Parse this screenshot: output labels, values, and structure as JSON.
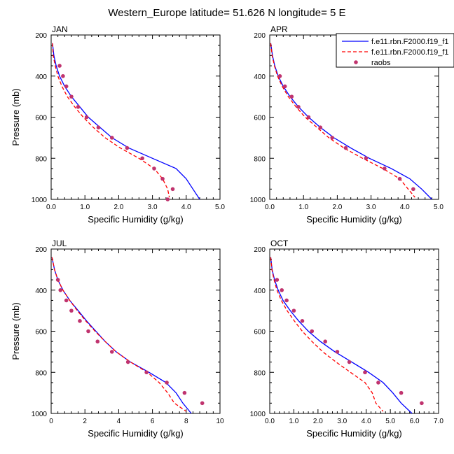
{
  "title": "Western_Europe  latitude= 51.626 N longitude= 5 E",
  "legend": {
    "entries": [
      {
        "label": "f.e11.rbn.F2000.f19_f1",
        "color": "#0000ff",
        "style": "solid"
      },
      {
        "label": "f.e11.rbn.F2000.f19_f1",
        "color": "#ff0000",
        "style": "dashed"
      },
      {
        "label": "raobs",
        "color": "#c0336e",
        "style": "marker"
      }
    ]
  },
  "chart_data": [
    {
      "type": "line",
      "panel": "JAN",
      "xlabel": "Specific Humidity (g/kg)",
      "ylabel": "Pressure (mb)",
      "xlim": [
        0,
        5
      ],
      "ylim": [
        1000,
        200
      ],
      "x_ticks": [
        "0.0",
        "1.0",
        "2.0",
        "3.0",
        "4.0",
        "5.0"
      ],
      "y_ticks": [
        "200",
        "400",
        "600",
        "800",
        "1000"
      ],
      "series": [
        {
          "name": "f.e11.rbn.F2000.f19_f1",
          "color": "#0000ff",
          "dash": "",
          "points": [
            [
              0.04,
              240
            ],
            [
              0.08,
              300
            ],
            [
              0.15,
              350
            ],
            [
              0.25,
              400
            ],
            [
              0.4,
              450
            ],
            [
              0.6,
              500
            ],
            [
              0.85,
              550
            ],
            [
              1.1,
              600
            ],
            [
              1.45,
              650
            ],
            [
              1.8,
              700
            ],
            [
              2.3,
              750
            ],
            [
              3.0,
              800
            ],
            [
              3.7,
              850
            ],
            [
              4.0,
              900
            ],
            [
              4.2,
              950
            ],
            [
              4.4,
              1000
            ]
          ]
        },
        {
          "name": "f.e11.rbn.F2000.f19_f1",
          "color": "#ff0000",
          "dash": "5,3",
          "points": [
            [
              0.04,
              240
            ],
            [
              0.06,
              300
            ],
            [
              0.12,
              350
            ],
            [
              0.2,
              400
            ],
            [
              0.32,
              450
            ],
            [
              0.48,
              500
            ],
            [
              0.7,
              550
            ],
            [
              0.95,
              600
            ],
            [
              1.25,
              650
            ],
            [
              1.6,
              700
            ],
            [
              2.05,
              750
            ],
            [
              2.6,
              800
            ],
            [
              3.05,
              850
            ],
            [
              3.3,
              900
            ],
            [
              3.45,
              950
            ],
            [
              3.5,
              990
            ]
          ]
        }
      ],
      "raobs": [
        [
          0.25,
          350
        ],
        [
          0.35,
          400
        ],
        [
          0.45,
          450
        ],
        [
          0.6,
          500
        ],
        [
          0.8,
          550
        ],
        [
          1.05,
          600
        ],
        [
          1.4,
          650
        ],
        [
          1.8,
          700
        ],
        [
          2.25,
          750
        ],
        [
          2.7,
          800
        ],
        [
          3.05,
          850
        ],
        [
          3.3,
          900
        ],
        [
          3.6,
          950
        ],
        [
          3.45,
          1000
        ]
      ]
    },
    {
      "type": "line",
      "panel": "APR",
      "xlabel": "Specific Humidity (g/kg)",
      "ylabel": "Pressure (mb)",
      "xlim": [
        0,
        5
      ],
      "ylim": [
        1000,
        200
      ],
      "x_ticks": [
        "0.0",
        "1.0",
        "2.0",
        "3.0",
        "4.0",
        "5.0"
      ],
      "y_ticks": [
        "200",
        "400",
        "600",
        "800",
        "1000"
      ],
      "series": [
        {
          "name": "f.e11.rbn.F2000.f19_f1",
          "color": "#0000ff",
          "dash": "",
          "points": [
            [
              0.03,
              240
            ],
            [
              0.08,
              300
            ],
            [
              0.15,
              350
            ],
            [
              0.25,
              400
            ],
            [
              0.4,
              450
            ],
            [
              0.6,
              500
            ],
            [
              0.85,
              550
            ],
            [
              1.15,
              600
            ],
            [
              1.5,
              650
            ],
            [
              1.9,
              700
            ],
            [
              2.4,
              750
            ],
            [
              2.95,
              800
            ],
            [
              3.6,
              850
            ],
            [
              4.15,
              900
            ],
            [
              4.5,
              950
            ],
            [
              4.8,
              1000
            ]
          ]
        },
        {
          "name": "f.e11.rbn.F2000.f19_f1",
          "color": "#ff0000",
          "dash": "5,3",
          "points": [
            [
              0.03,
              240
            ],
            [
              0.07,
              300
            ],
            [
              0.14,
              350
            ],
            [
              0.23,
              400
            ],
            [
              0.37,
              450
            ],
            [
              0.55,
              500
            ],
            [
              0.78,
              550
            ],
            [
              1.05,
              600
            ],
            [
              1.4,
              650
            ],
            [
              1.75,
              700
            ],
            [
              2.2,
              750
            ],
            [
              2.75,
              800
            ],
            [
              3.35,
              850
            ],
            [
              3.85,
              900
            ],
            [
              4.1,
              950
            ],
            [
              4.3,
              990
            ]
          ]
        }
      ],
      "raobs": [
        [
          0.3,
          400
        ],
        [
          0.45,
          450
        ],
        [
          0.65,
          500
        ],
        [
          0.85,
          550
        ],
        [
          1.15,
          600
        ],
        [
          1.5,
          650
        ],
        [
          1.85,
          700
        ],
        [
          2.25,
          750
        ],
        [
          2.85,
          800
        ],
        [
          3.4,
          850
        ],
        [
          3.85,
          900
        ],
        [
          4.25,
          950
        ]
      ]
    },
    {
      "type": "line",
      "panel": "JUL",
      "xlabel": "Specific Humidity (g/kg)",
      "ylabel": "Pressure (mb)",
      "xlim": [
        0,
        10
      ],
      "ylim": [
        1000,
        200
      ],
      "x_ticks": [
        "0",
        "2",
        "4",
        "6",
        "8",
        "10"
      ],
      "y_ticks": [
        "200",
        "400",
        "600",
        "800",
        "1000"
      ],
      "series": [
        {
          "name": "f.e11.rbn.F2000.f19_f1",
          "color": "#0000ff",
          "dash": "",
          "points": [
            [
              0.05,
              240
            ],
            [
              0.2,
              300
            ],
            [
              0.4,
              350
            ],
            [
              0.7,
              400
            ],
            [
              1.1,
              450
            ],
            [
              1.6,
              500
            ],
            [
              2.1,
              550
            ],
            [
              2.65,
              600
            ],
            [
              3.2,
              650
            ],
            [
              3.85,
              700
            ],
            [
              4.7,
              750
            ],
            [
              5.8,
              800
            ],
            [
              6.8,
              850
            ],
            [
              7.4,
              900
            ],
            [
              7.8,
              950
            ],
            [
              8.3,
              1000
            ]
          ]
        },
        {
          "name": "f.e11.rbn.F2000.f19_f1",
          "color": "#ff0000",
          "dash": "5,3",
          "points": [
            [
              0.05,
              240
            ],
            [
              0.2,
              300
            ],
            [
              0.4,
              350
            ],
            [
              0.7,
              400
            ],
            [
              1.1,
              450
            ],
            [
              1.55,
              500
            ],
            [
              2.05,
              550
            ],
            [
              2.6,
              600
            ],
            [
              3.2,
              650
            ],
            [
              3.85,
              700
            ],
            [
              4.7,
              750
            ],
            [
              5.7,
              800
            ],
            [
              6.4,
              850
            ],
            [
              6.9,
              900
            ],
            [
              7.3,
              950
            ],
            [
              8.0,
              990
            ]
          ]
        }
      ],
      "raobs": [
        [
          0.4,
          350
        ],
        [
          0.55,
          400
        ],
        [
          0.9,
          450
        ],
        [
          1.2,
          500
        ],
        [
          1.7,
          550
        ],
        [
          2.2,
          600
        ],
        [
          2.75,
          650
        ],
        [
          3.6,
          700
        ],
        [
          4.55,
          750
        ],
        [
          5.65,
          800
        ],
        [
          6.85,
          850
        ],
        [
          7.9,
          900
        ],
        [
          8.95,
          950
        ]
      ]
    },
    {
      "type": "line",
      "panel": "OCT",
      "xlabel": "Specific Humidity (g/kg)",
      "ylabel": "Pressure (mb)",
      "xlim": [
        0,
        7
      ],
      "ylim": [
        1000,
        200
      ],
      "x_ticks": [
        "0.0",
        "1.0",
        "2.0",
        "3.0",
        "4.0",
        "5.0",
        "6.0",
        "7.0"
      ],
      "y_ticks": [
        "200",
        "400",
        "600",
        "800",
        "1000"
      ],
      "series": [
        {
          "name": "f.e11.rbn.F2000.f19_f1",
          "color": "#0000ff",
          "dash": "",
          "points": [
            [
              0.04,
              240
            ],
            [
              0.1,
              300
            ],
            [
              0.2,
              350
            ],
            [
              0.35,
              400
            ],
            [
              0.55,
              450
            ],
            [
              0.85,
              500
            ],
            [
              1.2,
              550
            ],
            [
              1.6,
              600
            ],
            [
              2.1,
              650
            ],
            [
              2.7,
              700
            ],
            [
              3.4,
              750
            ],
            [
              4.1,
              800
            ],
            [
              4.7,
              850
            ],
            [
              5.1,
              900
            ],
            [
              5.45,
              950
            ],
            [
              5.9,
              1000
            ]
          ]
        },
        {
          "name": "f.e11.rbn.F2000.f19_f1",
          "color": "#ff0000",
          "dash": "5,3",
          "points": [
            [
              0.04,
              240
            ],
            [
              0.09,
              300
            ],
            [
              0.18,
              350
            ],
            [
              0.3,
              400
            ],
            [
              0.48,
              450
            ],
            [
              0.72,
              500
            ],
            [
              1.02,
              550
            ],
            [
              1.35,
              600
            ],
            [
              1.75,
              650
            ],
            [
              2.2,
              700
            ],
            [
              2.75,
              750
            ],
            [
              3.35,
              800
            ],
            [
              3.95,
              850
            ],
            [
              4.25,
              900
            ],
            [
              4.4,
              950
            ],
            [
              4.7,
              990
            ]
          ]
        }
      ],
      "raobs": [
        [
          0.3,
          350
        ],
        [
          0.5,
          400
        ],
        [
          0.7,
          450
        ],
        [
          1.0,
          500
        ],
        [
          1.35,
          550
        ],
        [
          1.75,
          600
        ],
        [
          2.3,
          650
        ],
        [
          2.8,
          700
        ],
        [
          3.3,
          750
        ],
        [
          3.95,
          800
        ],
        [
          4.5,
          850
        ],
        [
          5.45,
          900
        ],
        [
          6.3,
          950
        ]
      ]
    }
  ]
}
